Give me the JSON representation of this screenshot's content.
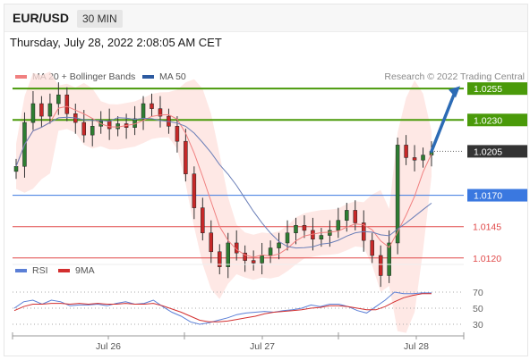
{
  "header": {
    "symbol": "EUR/USD",
    "timeframe": "30 MIN"
  },
  "datetime": "Thursday, July 28, 2022 2:08:05 AM CET",
  "legend": [
    {
      "label": "MA 20 + Bollinger Bands",
      "color": "#f08080"
    },
    {
      "label": "MA 50",
      "color": "#2c5aa0"
    }
  ],
  "credit": "Research © 2022 Trading Central",
  "colors": {
    "resistance": "#4a9a0a",
    "current": "#333333",
    "pivot": "#3a78e0",
    "support": "#e04848",
    "arrow": "#2c6bb5",
    "band": "#fde0dc"
  },
  "chart_data": [
    {
      "type": "candlestick",
      "title": "",
      "x_ticks": [
        "Jul 26",
        "Jul 27",
        "Jul 28"
      ],
      "ylim": [
        1.008,
        1.029
      ],
      "levels": [
        {
          "label": "1.0255",
          "value": 1.0255,
          "kind": "resistance"
        },
        {
          "label": "1.0230",
          "value": 1.023,
          "kind": "resistance"
        },
        {
          "label": "1.0205",
          "value": 1.0205,
          "kind": "current"
        },
        {
          "label": "1.0170",
          "value": 1.017,
          "kind": "pivot"
        },
        {
          "label": "1.0145",
          "value": 1.0145,
          "kind": "support"
        },
        {
          "label": "1.0120",
          "value": 1.012,
          "kind": "support"
        }
      ],
      "price_path": [
        1.0193,
        1.0228,
        1.0243,
        1.0233,
        1.0243,
        1.025,
        1.0235,
        1.0228,
        1.0218,
        1.0225,
        1.0229,
        1.0223,
        1.0227,
        1.0224,
        1.0231,
        1.0243,
        1.0239,
        1.0233,
        1.0225,
        1.0213,
        1.0187,
        1.016,
        1.014,
        1.0125,
        1.0113,
        1.0132,
        1.0124,
        1.0118,
        1.0116,
        1.0122,
        1.0128,
        1.0132,
        1.014,
        1.0146,
        1.0142,
        1.0135,
        1.0138,
        1.0142,
        1.015,
        1.0158,
        1.0148,
        1.0134,
        1.0122,
        1.0106,
        1.0132,
        1.021,
        1.02,
        1.0198,
        1.0202,
        1.0205
      ]
    },
    {
      "type": "line",
      "title": "",
      "series": [
        {
          "name": "RSI",
          "values": [
            50,
            58,
            60,
            55,
            60,
            58,
            53,
            54,
            54,
            55,
            53,
            56,
            58,
            55,
            56,
            60,
            52,
            45,
            40,
            33,
            30,
            32,
            35,
            38,
            42,
            44,
            45,
            46,
            45,
            47,
            48,
            50,
            54,
            52,
            55,
            55,
            52,
            47,
            44,
            52,
            60,
            70,
            68,
            68,
            69,
            69
          ]
        },
        {
          "name": "9MA",
          "values": [
            47,
            52,
            55,
            55,
            56,
            56,
            55,
            56,
            55,
            56,
            55,
            55,
            56,
            55,
            55,
            56,
            53,
            49,
            45,
            40,
            35,
            33,
            33,
            34,
            36,
            38,
            40,
            43,
            45,
            46,
            47,
            48,
            50,
            51,
            53,
            53,
            52,
            50,
            48,
            48,
            52,
            58,
            63,
            66,
            68,
            68
          ]
        }
      ],
      "ylim": [
        20,
        80
      ],
      "y_ticks": [
        "70",
        "50",
        "30"
      ]
    }
  ]
}
